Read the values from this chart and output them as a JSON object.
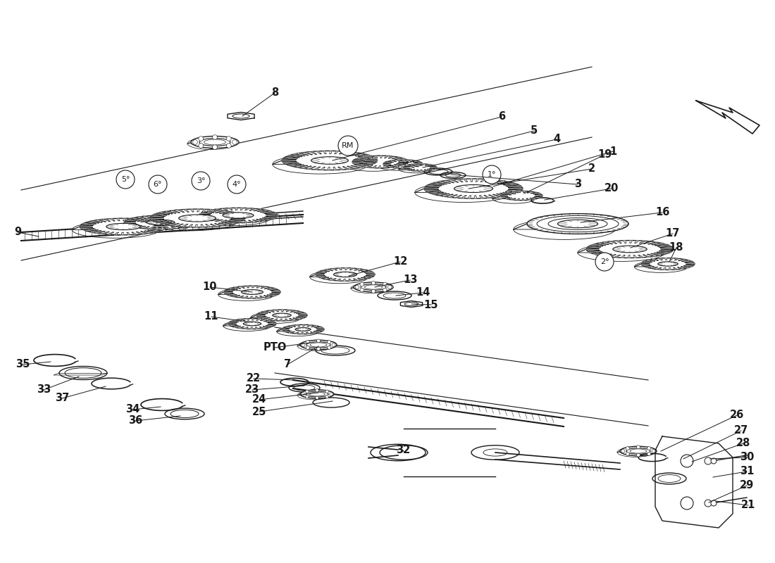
{
  "bg_color": "#ffffff",
  "line_color": "#1a1a1a",
  "label_fontsize": 10.5,
  "gear_lw": 1.0,
  "shaft_lw": 1.5,
  "label_lw": 0.7
}
